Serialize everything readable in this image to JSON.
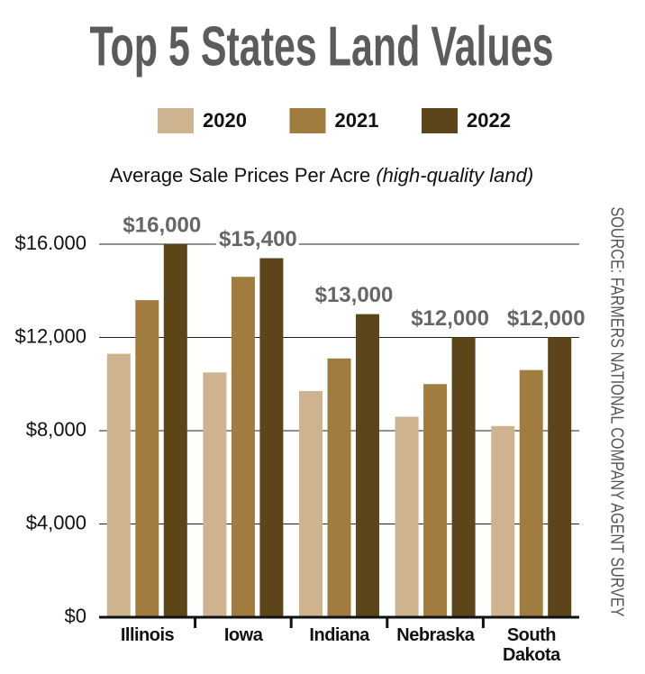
{
  "chart_data": {
    "type": "bar",
    "title": "Top 5 States Land Values",
    "subtitle": "Average Sale Prices Per Acre",
    "subtitle_note": "(high-quality land)",
    "source": "SOURCE: FARMERS NATIONAL COMPANY AGENT SURVEY",
    "categories": [
      "Illinois",
      "Iowa",
      "Indiana",
      "Nebraska",
      "South Dakota"
    ],
    "series": [
      {
        "name": "2020",
        "color": "#cdb48f",
        "values": [
          11300,
          10500,
          9700,
          8600,
          8200
        ]
      },
      {
        "name": "2021",
        "color": "#a07c3f",
        "values": [
          13600,
          14600,
          11100,
          10000,
          10600
        ]
      },
      {
        "name": "2022",
        "color": "#5c4619",
        "values": [
          16000,
          15400,
          13000,
          12000,
          12000
        ],
        "value_labels": [
          "$16,000",
          "$15,400",
          "$13,000",
          "$12,000",
          "$12,000"
        ]
      }
    ],
    "ylim": [
      0,
      16000
    ],
    "yticks": [
      {
        "value": 0,
        "label": "$0"
      },
      {
        "value": 4000,
        "label": "$4,000"
      },
      {
        "value": 8000,
        "label": "$8,000"
      },
      {
        "value": 12000,
        "label": "$12,000"
      },
      {
        "value": 16000,
        "label": "$16.000"
      }
    ],
    "grid": true
  }
}
